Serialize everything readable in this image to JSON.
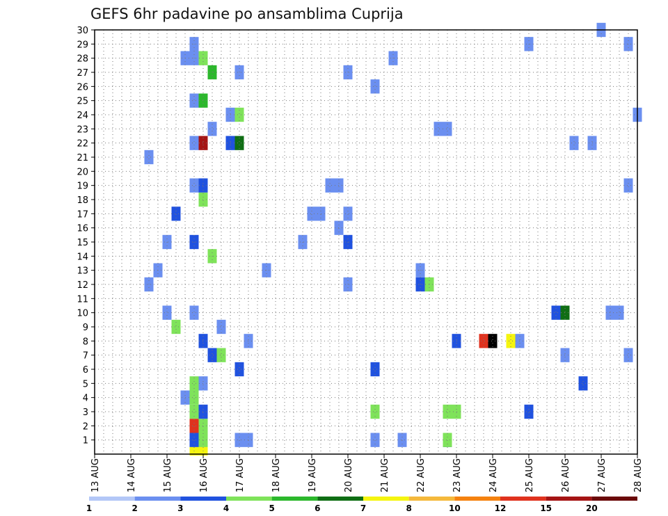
{
  "chart_data": {
    "type": "heatmap",
    "title": "GEFS 6hr padavine po ansamblima Cuprija",
    "x_tick_labels": [
      "13 AUG",
      "14 AUG",
      "15 AUG",
      "16 AUG",
      "17 AUG",
      "18 AUG",
      "19 AUG",
      "20 AUG",
      "21 AUG",
      "22 AUG",
      "23 AUG",
      "24 AUG",
      "25 AUG",
      "26 AUG",
      "27 AUG",
      "28 AUG"
    ],
    "y_tick_labels": [
      "1",
      "2",
      "3",
      "4",
      "5",
      "6",
      "7",
      "8",
      "9",
      "10",
      "11",
      "12",
      "13",
      "14",
      "15",
      "16",
      "17",
      "18",
      "19",
      "20",
      "21",
      "22",
      "23",
      "24",
      "25",
      "26",
      "27",
      "28",
      "29",
      "30"
    ],
    "x_unit": "6-hour step",
    "xlim": [
      0,
      60
    ],
    "ylim": [
      0,
      30
    ],
    "grid": true,
    "colorbar": {
      "labels": [
        "1",
        "2",
        "3",
        "4",
        "5",
        "6",
        "7",
        "8",
        "10",
        "12",
        "15",
        "20"
      ],
      "colors": [
        "#b3c7f7",
        "#6b8ff0",
        "#2052df",
        "#7fe35a",
        "#2cb82c",
        "#0f6e14",
        "#f5f50f",
        "#f5b93c",
        "#f5820f",
        "#e0321e",
        "#a51414",
        "#6b0a0a"
      ]
    },
    "cells": [
      [
        11,
        0.4,
        6
      ],
      [
        12,
        0.4,
        6
      ],
      [
        11,
        1,
        2
      ],
      [
        12,
        1,
        3
      ],
      [
        16,
        1,
        1
      ],
      [
        17,
        1,
        1
      ],
      [
        31,
        1,
        1
      ],
      [
        34,
        1,
        1
      ],
      [
        39,
        1,
        2
      ],
      [
        39,
        1,
        3
      ],
      [
        11,
        2,
        9
      ],
      [
        12,
        2,
        3
      ],
      [
        11,
        3,
        3
      ],
      [
        12,
        3,
        2
      ],
      [
        31,
        3,
        3
      ],
      [
        39,
        3,
        3
      ],
      [
        48,
        3,
        2
      ],
      [
        40,
        3,
        3
      ],
      [
        10,
        4,
        1
      ],
      [
        11,
        4,
        3
      ],
      [
        11,
        5,
        3
      ],
      [
        12,
        5,
        1
      ],
      [
        54,
        5,
        2
      ],
      [
        16,
        6,
        2
      ],
      [
        31,
        6,
        2
      ],
      [
        13,
        7,
        2
      ],
      [
        14,
        7,
        3
      ],
      [
        52,
        7,
        1
      ],
      [
        59,
        7,
        1
      ],
      [
        12,
        8,
        2
      ],
      [
        17,
        8,
        1
      ],
      [
        40,
        8,
        2
      ],
      [
        43,
        8,
        9
      ],
      [
        44,
        8,
        12
      ],
      [
        46,
        8,
        6
      ],
      [
        47,
        8,
        1
      ],
      [
        9,
        9,
        3
      ],
      [
        14,
        9,
        1
      ],
      [
        8,
        10,
        1
      ],
      [
        11,
        10,
        1
      ],
      [
        51,
        10,
        2
      ],
      [
        52,
        10,
        5
      ],
      [
        57,
        10,
        1
      ],
      [
        58,
        10,
        1
      ],
      [
        6,
        12,
        1
      ],
      [
        28,
        12,
        1
      ],
      [
        36,
        12,
        2
      ],
      [
        37,
        12,
        3
      ],
      [
        7,
        13,
        1
      ],
      [
        19,
        13,
        1
      ],
      [
        36,
        13,
        1
      ],
      [
        13,
        14,
        3
      ],
      [
        8,
        15,
        1
      ],
      [
        11,
        15,
        2
      ],
      [
        23,
        15,
        1
      ],
      [
        28,
        15,
        2
      ],
      [
        27,
        16,
        1
      ],
      [
        9,
        17,
        2
      ],
      [
        24,
        17,
        1
      ],
      [
        25,
        17,
        1
      ],
      [
        28,
        17,
        1
      ],
      [
        12,
        18,
        3
      ],
      [
        11,
        19,
        1
      ],
      [
        12,
        19,
        2
      ],
      [
        26,
        19,
        1
      ],
      [
        27,
        19,
        1
      ],
      [
        59,
        19,
        1
      ],
      [
        6,
        21,
        1
      ],
      [
        11,
        22,
        1
      ],
      [
        12,
        22,
        10
      ],
      [
        15,
        22,
        2
      ],
      [
        16,
        22,
        5
      ],
      [
        53,
        22,
        1
      ],
      [
        55,
        22,
        1
      ],
      [
        13,
        23,
        1
      ],
      [
        38,
        23,
        1
      ],
      [
        39,
        23,
        1
      ],
      [
        15,
        24,
        1
      ],
      [
        16,
        24,
        3
      ],
      [
        60,
        24,
        1
      ],
      [
        11,
        25,
        1
      ],
      [
        12,
        25,
        4
      ],
      [
        31,
        26,
        1
      ],
      [
        13,
        27,
        4
      ],
      [
        16,
        27,
        1
      ],
      [
        28,
        27,
        1
      ],
      [
        10,
        28,
        1
      ],
      [
        11,
        28,
        1
      ],
      [
        12,
        28,
        3
      ],
      [
        33,
        28,
        1
      ],
      [
        11,
        29,
        1
      ],
      [
        48,
        29,
        1
      ],
      [
        59,
        29,
        1
      ],
      [
        56,
        30,
        1
      ]
    ]
  }
}
